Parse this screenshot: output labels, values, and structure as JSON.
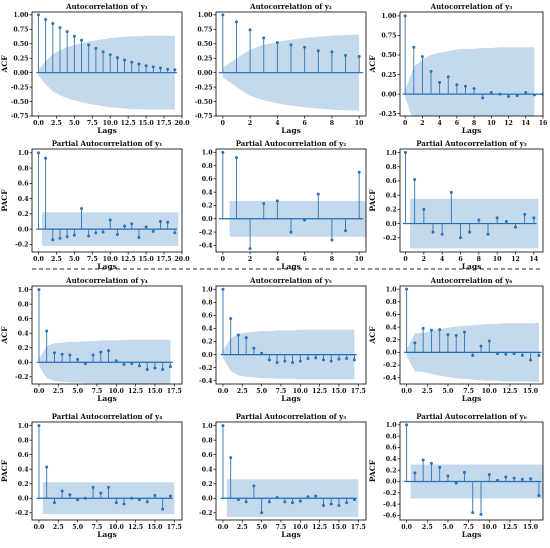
{
  "colors": {
    "band": "#c5d9ec",
    "stem": "#2b74b5",
    "zero": "#1f6fb2",
    "frame": "#000000"
  },
  "chart_data": [
    {
      "type": "acf",
      "title": "Autocorrelation of y₁",
      "xlabel": "Lags",
      "ylabel": "ACF",
      "xlim": [
        -0.9,
        20
      ],
      "ylim": [
        -0.75,
        1.05
      ],
      "xticks": [
        0,
        2.5,
        5,
        7.5,
        10,
        12.5,
        15,
        17.5,
        20
      ],
      "xtick_labels": [
        "0.0",
        "2.5",
        "5.0",
        "7.5",
        "10.0",
        "12.5",
        "15.0",
        "17.5",
        "20.0"
      ],
      "yticks": [
        -0.75,
        -0.5,
        -0.25,
        0,
        0.25,
        0.5,
        0.75,
        1.0
      ],
      "ytick_labels": [
        "-0.75",
        "-0.50",
        "-0.25",
        "0.00",
        "0.25",
        "0.50",
        "0.75",
        "1.00"
      ],
      "values": [
        1.0,
        0.92,
        0.85,
        0.78,
        0.71,
        0.63,
        0.56,
        0.48,
        0.42,
        0.36,
        0.31,
        0.26,
        0.22,
        0.18,
        0.15,
        0.12,
        0.1,
        0.08,
        0.06,
        0.05
      ],
      "band": [
        [
          0,
          0.05
        ],
        [
          1,
          0.2
        ],
        [
          2,
          0.32
        ],
        [
          3,
          0.39
        ],
        [
          4,
          0.44
        ],
        [
          5,
          0.48
        ],
        [
          6,
          0.51
        ],
        [
          7,
          0.54
        ],
        [
          8,
          0.56
        ],
        [
          9,
          0.58
        ],
        [
          10,
          0.6
        ],
        [
          11,
          0.61
        ],
        [
          12,
          0.62
        ],
        [
          13,
          0.63
        ],
        [
          14,
          0.63
        ],
        [
          15,
          0.64
        ],
        [
          16,
          0.64
        ],
        [
          17,
          0.64
        ],
        [
          18,
          0.64
        ],
        [
          19,
          0.64
        ]
      ]
    },
    {
      "type": "acf",
      "title": "Autocorrelation of y₂",
      "xlabel": "Lags",
      "ylabel": "",
      "xlim": [
        -0.5,
        10.5
      ],
      "ylim": [
        -0.75,
        1.05
      ],
      "xticks": [
        0,
        2,
        4,
        6,
        8,
        10
      ],
      "xtick_labels": [
        "0",
        "2",
        "4",
        "6",
        "8",
        "10"
      ],
      "yticks": [
        -0.75,
        -0.5,
        -0.25,
        0,
        0.25,
        0.5,
        0.75,
        1.0
      ],
      "ytick_labels": [
        "-0.75",
        "-0.50",
        "-0.25",
        "0.00",
        "0.25",
        "0.50",
        "0.75",
        "1.00"
      ],
      "values": [
        1.0,
        0.88,
        0.74,
        0.6,
        0.52,
        0.48,
        0.44,
        0.38,
        0.36,
        0.3,
        0.28
      ],
      "band": [
        [
          0,
          0.08
        ],
        [
          1,
          0.25
        ],
        [
          2,
          0.4
        ],
        [
          3,
          0.48
        ],
        [
          4,
          0.53
        ],
        [
          5,
          0.57
        ],
        [
          6,
          0.6
        ],
        [
          7,
          0.62
        ],
        [
          8,
          0.64
        ],
        [
          9,
          0.65
        ],
        [
          10,
          0.66
        ]
      ]
    },
    {
      "type": "acf",
      "title": "Autocorrelation of y₃",
      "xlabel": "Lags",
      "ylabel": "ACF",
      "xlim": [
        -0.6,
        16
      ],
      "ylim": [
        -0.28,
        1.05
      ],
      "xticks": [
        0,
        2,
        4,
        6,
        8,
        10,
        12,
        14,
        16
      ],
      "xtick_labels": [
        "0",
        "2",
        "4",
        "6",
        "8",
        "10",
        "12",
        "14",
        "16"
      ],
      "yticks": [
        -0.25,
        0,
        0.25,
        0.5,
        0.75,
        1.0
      ],
      "ytick_labels": [
        "-0.25",
        "0.00",
        "0.25",
        "0.50",
        "0.75",
        "1.00"
      ],
      "values": [
        1.0,
        0.6,
        0.48,
        0.29,
        0.15,
        0.22,
        0.12,
        0.1,
        0.07,
        -0.05,
        0.02,
        0.0,
        -0.03,
        -0.02,
        0.02,
        -0.01,
        0.0
      ],
      "band": [
        [
          0,
          0.05
        ],
        [
          1,
          0.35
        ],
        [
          2,
          0.44
        ],
        [
          3,
          0.5
        ],
        [
          4,
          0.53
        ],
        [
          5,
          0.55
        ],
        [
          6,
          0.57
        ],
        [
          7,
          0.58
        ],
        [
          8,
          0.58
        ],
        [
          9,
          0.59
        ],
        [
          10,
          0.59
        ],
        [
          11,
          0.6
        ],
        [
          12,
          0.6
        ],
        [
          13,
          0.6
        ],
        [
          14,
          0.6
        ],
        [
          15,
          0.6
        ]
      ]
    },
    {
      "type": "pacf",
      "title": "Partial Autocorrelation of y₁",
      "xlabel": "Lags",
      "ylabel": "PACF",
      "xlim": [
        -0.9,
        20
      ],
      "ylim": [
        -0.3,
        1.05
      ],
      "xticks": [
        0,
        2.5,
        5,
        7.5,
        10,
        12.5,
        15,
        17.5,
        20
      ],
      "xtick_labels": [
        "0.0",
        "2.5",
        "5.0",
        "7.5",
        "10.0",
        "12.5",
        "15.0",
        "17.5",
        "20.0"
      ],
      "yticks": [
        -0.2,
        0,
        0.2,
        0.4,
        0.6,
        0.8,
        1.0
      ],
      "ytick_labels": [
        "-0.2",
        "0.0",
        "0.2",
        "0.4",
        "0.6",
        "0.8",
        "1.0"
      ],
      "values": [
        1.0,
        0.93,
        -0.14,
        -0.12,
        -0.1,
        -0.08,
        0.27,
        -0.09,
        -0.05,
        -0.04,
        0.12,
        -0.07,
        0.04,
        0.07,
        -0.11,
        0.03,
        -0.03,
        0.1,
        0.09,
        -0.05
      ],
      "band_const": 0.22
    },
    {
      "type": "pacf",
      "title": "Partial Autocorrelation of y₂",
      "xlabel": "Lags",
      "ylabel": "",
      "xlim": [
        -0.5,
        10.5
      ],
      "ylim": [
        -0.5,
        1.05
      ],
      "xticks": [
        0,
        2,
        4,
        6,
        8,
        10
      ],
      "xtick_labels": [
        "0",
        "2",
        "4",
        "6",
        "8",
        "10"
      ],
      "yticks": [
        -0.4,
        -0.2,
        0,
        0.2,
        0.4,
        0.6,
        0.8,
        1.0
      ],
      "ytick_labels": [
        "-0.4",
        "-0.2",
        "0.0",
        "0.2",
        "0.4",
        "0.6",
        "0.8",
        "1.0"
      ],
      "values": [
        1.0,
        0.92,
        -0.45,
        0.23,
        0.27,
        -0.2,
        -0.02,
        0.37,
        -0.32,
        -0.18,
        0.7
      ],
      "band_const": 0.27
    },
    {
      "type": "pacf",
      "title": "Partial Autocorrelation of y₃",
      "xlabel": "Lags",
      "ylabel": "PACF",
      "xlim": [
        -0.6,
        15
      ],
      "ylim": [
        -0.4,
        1.05
      ],
      "xticks": [
        0,
        2,
        4,
        6,
        8,
        10,
        12,
        14
      ],
      "xtick_labels": [
        "0",
        "2",
        "4",
        "6",
        "8",
        "10",
        "12",
        "14"
      ],
      "yticks": [
        -0.2,
        0,
        0.2,
        0.4,
        0.6,
        0.8,
        1.0
      ],
      "ytick_labels": [
        "-0.2",
        "0.0",
        "0.2",
        "0.4",
        "0.6",
        "0.8",
        "1.0"
      ],
      "values": [
        1.0,
        0.62,
        0.2,
        -0.12,
        -0.15,
        0.44,
        -0.2,
        -0.12,
        0.05,
        -0.15,
        0.08,
        0.03,
        -0.05,
        0.13,
        0.08
      ],
      "band_const": 0.35
    },
    {
      "type": "acf",
      "title": "Autocorrelation of y₄",
      "xlabel": "Lags",
      "ylabel": "ACF",
      "xlim": [
        -0.9,
        18.5
      ],
      "ylim": [
        -0.3,
        1.05
      ],
      "xticks": [
        0,
        2.5,
        5,
        7.5,
        10,
        12.5,
        15,
        17.5
      ],
      "xtick_labels": [
        "0.0",
        "2.5",
        "5.0",
        "7.5",
        "10.0",
        "12.5",
        "15.0",
        "17.5"
      ],
      "yticks": [
        -0.2,
        0,
        0.2,
        0.4,
        0.6,
        0.8,
        1.0
      ],
      "ytick_labels": [
        "-0.2",
        "0.0",
        "0.2",
        "0.4",
        "0.6",
        "0.8",
        "1.0"
      ],
      "values": [
        1.0,
        0.43,
        0.13,
        0.11,
        0.1,
        0.04,
        -0.02,
        0.1,
        0.14,
        0.16,
        0.02,
        -0.03,
        -0.02,
        -0.05,
        -0.1,
        -0.08,
        -0.1,
        -0.06
      ],
      "band": [
        [
          0,
          0.05
        ],
        [
          1,
          0.22
        ],
        [
          2,
          0.26
        ],
        [
          3,
          0.27
        ],
        [
          4,
          0.28
        ],
        [
          5,
          0.28
        ],
        [
          6,
          0.29
        ],
        [
          7,
          0.29
        ],
        [
          8,
          0.3
        ],
        [
          9,
          0.3
        ],
        [
          10,
          0.3
        ],
        [
          11,
          0.31
        ],
        [
          12,
          0.31
        ],
        [
          13,
          0.31
        ],
        [
          14,
          0.31
        ],
        [
          15,
          0.31
        ],
        [
          16,
          0.31
        ],
        [
          17,
          0.31
        ]
      ]
    },
    {
      "type": "acf",
      "title": "Autocorrelation of y₅",
      "xlabel": "Lags",
      "ylabel": "",
      "xlim": [
        -0.9,
        18.5
      ],
      "ylim": [
        -0.45,
        1.05
      ],
      "xticks": [
        0,
        2.5,
        5,
        7.5,
        10,
        12.5,
        15,
        17.5
      ],
      "xtick_labels": [
        "0.0",
        "2.5",
        "5.0",
        "7.5",
        "10.0",
        "12.5",
        "15.0",
        "17.5"
      ],
      "yticks": [
        -0.4,
        -0.2,
        0,
        0.2,
        0.4,
        0.6,
        0.8,
        1.0
      ],
      "ytick_labels": [
        "-0.4",
        "-0.2",
        "0.0",
        "0.2",
        "0.4",
        "0.6",
        "0.8",
        "1.0"
      ],
      "values": [
        1.0,
        0.55,
        0.3,
        0.26,
        0.1,
        0.02,
        -0.08,
        -0.12,
        -0.1,
        -0.12,
        -0.1,
        -0.06,
        -0.05,
        -0.08,
        -0.1,
        -0.07,
        -0.06,
        -0.08
      ],
      "band": [
        [
          0,
          0.05
        ],
        [
          1,
          0.25
        ],
        [
          2,
          0.32
        ],
        [
          3,
          0.34
        ],
        [
          4,
          0.35
        ],
        [
          5,
          0.36
        ],
        [
          6,
          0.36
        ],
        [
          7,
          0.37
        ],
        [
          8,
          0.37
        ],
        [
          9,
          0.37
        ],
        [
          10,
          0.38
        ],
        [
          11,
          0.38
        ],
        [
          12,
          0.38
        ],
        [
          13,
          0.38
        ],
        [
          14,
          0.38
        ],
        [
          15,
          0.38
        ],
        [
          16,
          0.38
        ],
        [
          17,
          0.38
        ]
      ]
    },
    {
      "type": "acf",
      "title": "Autocorrelation of y₆",
      "xlabel": "Lags",
      "ylabel": "ACF",
      "xlim": [
        -0.8,
        16.5
      ],
      "ylim": [
        -0.5,
        1.05
      ],
      "xticks": [
        0,
        2.5,
        5,
        7.5,
        10,
        12.5,
        15
      ],
      "xtick_labels": [
        "0.0",
        "2.5",
        "5.0",
        "7.5",
        "10.0",
        "12.5",
        "15.0"
      ],
      "yticks": [
        -0.4,
        -0.2,
        0,
        0.2,
        0.4,
        0.6,
        0.8,
        1.0
      ],
      "ytick_labels": [
        "-0.4",
        "-0.2",
        "0.0",
        "0.2",
        "0.4",
        "0.6",
        "0.8",
        "1.0"
      ],
      "values": [
        1.0,
        0.15,
        0.38,
        0.35,
        0.36,
        0.28,
        0.27,
        0.32,
        -0.05,
        0.1,
        0.18,
        -0.02,
        -0.03,
        -0.02,
        -0.05,
        -0.12,
        -0.05
      ],
      "band": [
        [
          0,
          0.05
        ],
        [
          1,
          0.3
        ],
        [
          2,
          0.31
        ],
        [
          3,
          0.34
        ],
        [
          4,
          0.37
        ],
        [
          5,
          0.39
        ],
        [
          6,
          0.41
        ],
        [
          7,
          0.42
        ],
        [
          8,
          0.43
        ],
        [
          9,
          0.44
        ],
        [
          10,
          0.45
        ],
        [
          11,
          0.45
        ],
        [
          12,
          0.46
        ],
        [
          13,
          0.46
        ],
        [
          14,
          0.46
        ],
        [
          15,
          0.46
        ],
        [
          16,
          0.47
        ]
      ]
    },
    {
      "type": "pacf",
      "title": "Partial Autocorrelation of y₄",
      "xlabel": "Lags",
      "ylabel": "PACF",
      "xlim": [
        -0.9,
        18.5
      ],
      "ylim": [
        -0.3,
        1.05
      ],
      "xticks": [
        0,
        2.5,
        5,
        7.5,
        10,
        12.5,
        15,
        17.5
      ],
      "xtick_labels": [
        "0.0",
        "2.5",
        "5.0",
        "7.5",
        "10.0",
        "12.5",
        "15.0",
        "17.5"
      ],
      "yticks": [
        -0.2,
        0,
        0.2,
        0.4,
        0.6,
        0.8,
        1.0
      ],
      "ytick_labels": [
        "-0.2",
        "0.0",
        "0.2",
        "0.4",
        "0.6",
        "0.8",
        "1.0"
      ],
      "values": [
        1.0,
        0.43,
        -0.06,
        0.1,
        0.05,
        -0.02,
        0.0,
        0.15,
        0.07,
        0.15,
        -0.06,
        -0.08,
        0.0,
        -0.02,
        -0.05,
        0.04,
        -0.15,
        0.03
      ],
      "band_const": 0.22
    },
    {
      "type": "pacf",
      "title": "Partial Autocorrelation of y₅",
      "xlabel": "Lags",
      "ylabel": "",
      "xlim": [
        -0.9,
        18.5
      ],
      "ylim": [
        -0.3,
        1.05
      ],
      "xticks": [
        0,
        2.5,
        5,
        7.5,
        10,
        12.5,
        15,
        17.5
      ],
      "xtick_labels": [
        "0.0",
        "2.5",
        "5.0",
        "7.5",
        "10.0",
        "12.5",
        "15.0",
        "17.5"
      ],
      "yticks": [
        -0.2,
        0,
        0.2,
        0.4,
        0.6,
        0.8,
        1.0
      ],
      "ytick_labels": [
        "-0.2",
        "0.0",
        "0.2",
        "0.4",
        "0.6",
        "0.8",
        "1.0"
      ],
      "values": [
        1.0,
        0.56,
        -0.02,
        -0.05,
        0.17,
        -0.2,
        -0.05,
        0.01,
        -0.05,
        -0.06,
        -0.04,
        0.02,
        0.03,
        -0.1,
        -0.08,
        -0.1,
        -0.06,
        -0.02
      ],
      "band_const": 0.26
    },
    {
      "type": "pacf",
      "title": "Partial Autocorrelation of y₆",
      "xlabel": "Lags",
      "ylabel": "PACF",
      "xlim": [
        -0.8,
        16.5
      ],
      "ylim": [
        -0.68,
        1.05
      ],
      "xticks": [
        0,
        2.5,
        5,
        7.5,
        10,
        12.5,
        15
      ],
      "xtick_labels": [
        "0.0",
        "2.5",
        "5.0",
        "7.5",
        "10.0",
        "12.5",
        "15.0"
      ],
      "yticks": [
        -0.6,
        -0.4,
        -0.2,
        0,
        0.2,
        0.4,
        0.6,
        0.8,
        1.0
      ],
      "ytick_labels": [
        "-0.6",
        "-0.4",
        "-0.2",
        "0.0",
        "0.2",
        "0.4",
        "0.6",
        "0.8",
        "1.0"
      ],
      "values": [
        1.0,
        0.15,
        0.38,
        0.32,
        0.25,
        0.1,
        -0.03,
        0.16,
        -0.55,
        -0.58,
        0.12,
        0.02,
        0.08,
        0.06,
        0.04,
        0.05,
        -0.25
      ],
      "band_const": 0.3
    }
  ]
}
